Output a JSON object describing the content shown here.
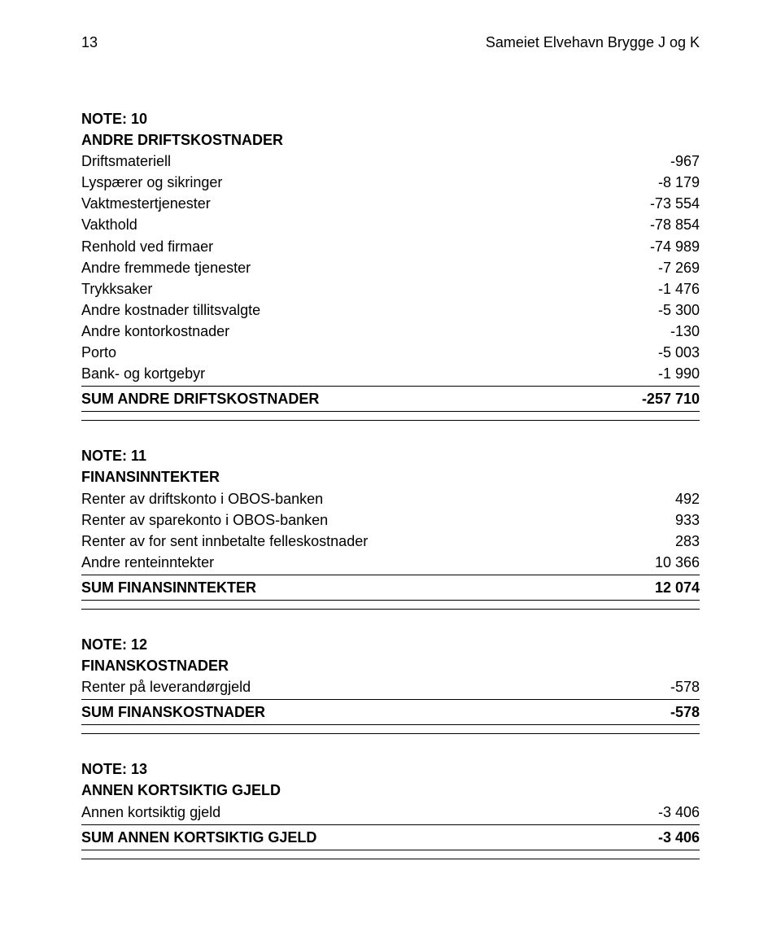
{
  "header": {
    "page_number": "13",
    "title": "Sameiet Elvehavn Brygge J og K"
  },
  "sections": [
    {
      "note_label": "NOTE: 10",
      "title": "ANDRE DRIFTSKOSTNADER",
      "rows": [
        {
          "label": "Driftsmateriell",
          "value": "-967"
        },
        {
          "label": "Lyspærer og sikringer",
          "value": "-8 179"
        },
        {
          "label": "Vaktmestertjenester",
          "value": "-73 554"
        },
        {
          "label": "Vakthold",
          "value": "-78 854"
        },
        {
          "label": "Renhold ved firmaer",
          "value": "-74 989"
        },
        {
          "label": "Andre fremmede tjenester",
          "value": "-7 269"
        },
        {
          "label": "Trykksaker",
          "value": "-1 476"
        },
        {
          "label": "Andre kostnader tillitsvalgte",
          "value": "-5 300"
        },
        {
          "label": "Andre kontorkostnader",
          "value": "-130"
        },
        {
          "label": "Porto",
          "value": "-5 003"
        },
        {
          "label": "Bank- og kortgebyr",
          "value": "-1 990"
        }
      ],
      "sum": {
        "label": "SUM ANDRE DRIFTSKOSTNADER",
        "value": "-257 710"
      }
    },
    {
      "note_label": "NOTE: 11",
      "title": "FINANSINNTEKTER",
      "rows": [
        {
          "label": "Renter av driftskonto i OBOS-banken",
          "value": "492"
        },
        {
          "label": "Renter av sparekonto i OBOS-banken",
          "value": "933"
        },
        {
          "label": "Renter av for sent innbetalte felleskostnader",
          "value": "283"
        },
        {
          "label": "Andre renteinntekter",
          "value": "10 366"
        }
      ],
      "sum": {
        "label": "SUM FINANSINNTEKTER",
        "value": "12 074"
      }
    },
    {
      "note_label": "NOTE: 12",
      "title": "FINANSKOSTNADER",
      "rows": [
        {
          "label": "Renter på leverandørgjeld",
          "value": "-578"
        }
      ],
      "sum": {
        "label": "SUM FINANSKOSTNADER",
        "value": "-578"
      }
    },
    {
      "note_label": "NOTE: 13",
      "title": "ANNEN KORTSIKTIG GJELD",
      "rows": [
        {
          "label": "Annen kortsiktig gjeld",
          "value": "-3 406"
        }
      ],
      "sum": {
        "label": "SUM ANNEN KORTSIKTIG GJELD",
        "value": "-3 406"
      }
    }
  ]
}
